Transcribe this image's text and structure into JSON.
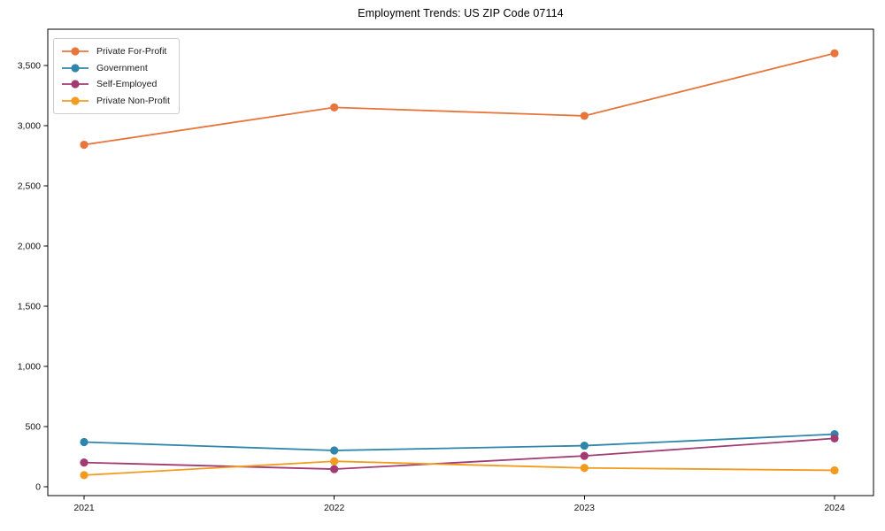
{
  "page": {
    "background": "#ffffff"
  },
  "chart_data": {
    "type": "line",
    "title": "Employment Trends: US ZIP Code 07114",
    "categories": [
      "2021",
      "2022",
      "2023",
      "2024"
    ],
    "series": [
      {
        "name": "Private For-Profit",
        "color": "#E8763C",
        "values": [
          2840,
          3150,
          3080,
          3600
        ]
      },
      {
        "name": "Government",
        "color": "#2E86AB",
        "values": [
          370,
          300,
          340,
          435
        ]
      },
      {
        "name": "Self-Employed",
        "color": "#A23B72",
        "values": [
          200,
          145,
          255,
          400
        ]
      },
      {
        "name": "Private Non-Profit",
        "color": "#F29C1F",
        "values": [
          95,
          210,
          155,
          135
        ]
      }
    ],
    "xlabel": "",
    "ylabel": "",
    "ylim": [
      -75,
      3800
    ],
    "yticks": [
      0,
      500,
      1000,
      1500,
      2000,
      2500,
      3000,
      3500
    ],
    "ytick_labels": [
      "0",
      "500",
      "1,000",
      "1,500",
      "2,000",
      "2,500",
      "3,000",
      "3,500"
    ],
    "grid": false,
    "legend_position": "upper-left",
    "axis_color": "#000000",
    "marker": "circle",
    "line_width": 1.8,
    "marker_radius": 4.6
  }
}
